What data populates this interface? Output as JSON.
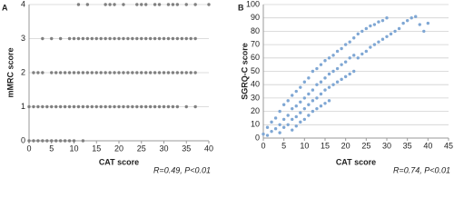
{
  "chart_data": [
    {
      "type": "scatter",
      "panel_label": "A",
      "ylabel": "mMRC score",
      "xlabel": "CAT score",
      "annotation": "R=0.49, P<0.01",
      "color": "#808080",
      "x": [
        0,
        1,
        2,
        3,
        4,
        5,
        6,
        7,
        8,
        9,
        10,
        12,
        0,
        1,
        2,
        3,
        4,
        5,
        6,
        7,
        8,
        9,
        10,
        11,
        12,
        13,
        14,
        15,
        16,
        17,
        18,
        19,
        20,
        21,
        22,
        23,
        24,
        25,
        26,
        27,
        28,
        29,
        30,
        31,
        32,
        33,
        35,
        37,
        1,
        2,
        3,
        5,
        6,
        7,
        8,
        9,
        10,
        11,
        12,
        13,
        14,
        15,
        16,
        17,
        18,
        19,
        20,
        21,
        22,
        23,
        24,
        25,
        26,
        27,
        28,
        29,
        30,
        31,
        32,
        33,
        34,
        35,
        36,
        37,
        3,
        5,
        7,
        9,
        10,
        11,
        12,
        13,
        14,
        15,
        16,
        17,
        18,
        19,
        20,
        21,
        22,
        23,
        24,
        25,
        26,
        27,
        28,
        29,
        30,
        31,
        32,
        33,
        34,
        35,
        36,
        37,
        11,
        13,
        17,
        18,
        19,
        21,
        24,
        25,
        26,
        28,
        29,
        31,
        32,
        33,
        35,
        37,
        40
      ],
      "values": [
        0,
        0,
        0,
        0,
        0,
        0,
        0,
        0,
        0,
        0,
        0,
        0,
        1,
        1,
        1,
        1,
        1,
        1,
        1,
        1,
        1,
        1,
        1,
        1,
        1,
        1,
        1,
        1,
        1,
        1,
        1,
        1,
        1,
        1,
        1,
        1,
        1,
        1,
        1,
        1,
        1,
        1,
        1,
        1,
        1,
        1,
        1,
        1,
        2,
        2,
        2,
        2,
        2,
        2,
        2,
        2,
        2,
        2,
        2,
        2,
        2,
        2,
        2,
        2,
        2,
        2,
        2,
        2,
        2,
        2,
        2,
        2,
        2,
        2,
        2,
        2,
        2,
        2,
        2,
        2,
        2,
        2,
        2,
        2,
        3,
        3,
        3,
        3,
        3,
        3,
        3,
        3,
        3,
        3,
        3,
        3,
        3,
        3,
        3,
        3,
        3,
        3,
        3,
        3,
        3,
        3,
        3,
        3,
        3,
        3,
        3,
        3,
        3,
        3,
        3,
        3,
        4,
        4,
        4,
        4,
        4,
        4,
        4,
        4,
        4,
        4,
        4,
        4,
        4,
        4,
        4,
        4,
        4
      ],
      "xlim": [
        0,
        40
      ],
      "xticks": [
        0,
        5,
        10,
        15,
        20,
        25,
        30,
        35,
        40
      ],
      "ylim": [
        0,
        4
      ],
      "yticks": [
        0,
        1,
        2,
        3,
        4
      ],
      "grid": true
    },
    {
      "type": "scatter",
      "panel_label": "B",
      "ylabel": "SGRQ-C score",
      "xlabel": "CAT score",
      "annotation": "R=0.74, P<0.01",
      "color": "#7fa7d4",
      "x": [
        0,
        1,
        1,
        2,
        2,
        3,
        3,
        4,
        4,
        4,
        5,
        5,
        5,
        6,
        6,
        6,
        7,
        7,
        7,
        7,
        8,
        8,
        8,
        8,
        9,
        9,
        9,
        9,
        10,
        10,
        10,
        10,
        11,
        11,
        11,
        11,
        12,
        12,
        12,
        12,
        13,
        13,
        13,
        13,
        14,
        14,
        14,
        14,
        15,
        15,
        15,
        15,
        16,
        16,
        16,
        16,
        17,
        17,
        17,
        18,
        18,
        18,
        19,
        19,
        19,
        20,
        20,
        20,
        21,
        21,
        21,
        22,
        22,
        22,
        23,
        23,
        24,
        24,
        25,
        25,
        26,
        26,
        27,
        27,
        28,
        28,
        29,
        29,
        30,
        30,
        31,
        32,
        33,
        34,
        35,
        36,
        37,
        38,
        39,
        40
      ],
      "values": [
        3,
        8,
        2,
        12,
        5,
        15,
        7,
        20,
        10,
        4,
        25,
        14,
        8,
        28,
        17,
        10,
        32,
        22,
        14,
        6,
        35,
        24,
        16,
        9,
        38,
        27,
        19,
        12,
        42,
        30,
        22,
        14,
        45,
        33,
        25,
        17,
        50,
        36,
        28,
        20,
        52,
        40,
        30,
        22,
        55,
        42,
        33,
        24,
        58,
        45,
        36,
        26,
        60,
        48,
        38,
        28,
        62,
        50,
        40,
        65,
        52,
        42,
        67,
        55,
        44,
        70,
        57,
        46,
        72,
        60,
        48,
        75,
        62,
        50,
        78,
        60,
        80,
        63,
        82,
        65,
        84,
        68,
        85,
        70,
        87,
        72,
        88,
        74,
        90,
        76,
        78,
        80,
        82,
        86,
        88,
        90,
        91,
        85,
        80,
        86
      ],
      "xlim": [
        0,
        45
      ],
      "xticks": [
        0,
        5,
        10,
        15,
        20,
        25,
        30,
        35,
        40,
        45
      ],
      "ylim": [
        0,
        100
      ],
      "yticks": [
        0,
        10,
        20,
        30,
        40,
        50,
        60,
        70,
        80,
        90,
        100
      ],
      "grid": true
    }
  ]
}
